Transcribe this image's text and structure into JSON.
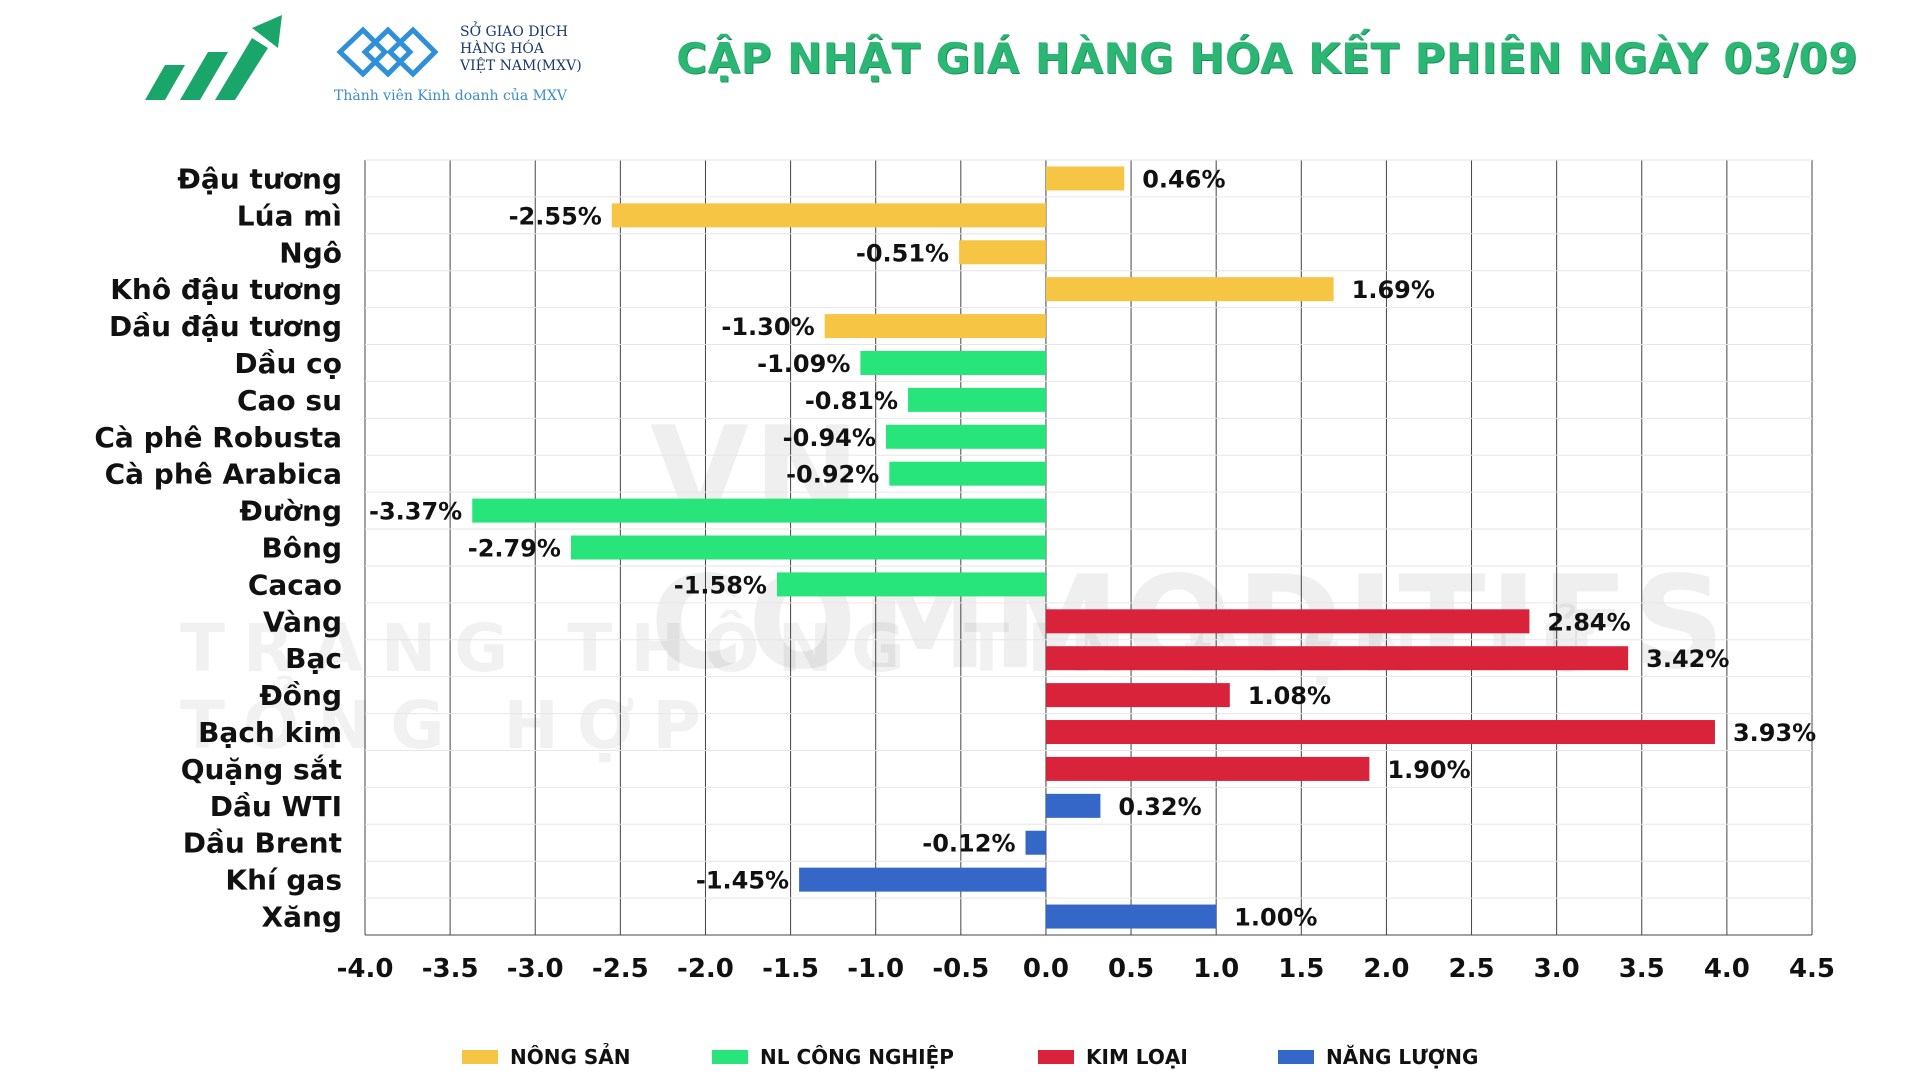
{
  "header": {
    "title": "CẬP NHẬT GIÁ HÀNG HÓA KẾT PHIÊN NGÀY 03/09",
    "mxv_line1": "SỞ GIAO DỊCH",
    "mxv_line2": "HÀNG HÓA",
    "mxv_line3": "VIỆT NAM(MXV)",
    "mxv_sub": "Thành viên Kinh doanh của MXV"
  },
  "watermark": {
    "line1": "VN COMMODITIES",
    "line2": "TRANG THÔNG TIN ĐIỆN TỬ TỔNG HỢP"
  },
  "colors": {
    "nong_san": "#f7c544",
    "nl_cong_nghiep": "#27e57a",
    "kim_loai": "#d9233a",
    "nang_luong": "#3467c8",
    "title": "#2bb673"
  },
  "chart_data": {
    "type": "bar",
    "orientation": "horizontal",
    "xlim": [
      -4.0,
      4.5
    ],
    "xticks": [
      "-4.0",
      "-3.5",
      "-3.0",
      "-2.5",
      "-2.0",
      "-1.5",
      "-1.0",
      "-0.5",
      "0.0",
      "0.5",
      "1.0",
      "1.5",
      "2.0",
      "2.5",
      "3.0",
      "3.5",
      "4.0",
      "4.5"
    ],
    "grid": true,
    "legend_placement": "bottom",
    "groups": [
      {
        "name": "NÔNG SẢN",
        "color": "#f7c544"
      },
      {
        "name": "NL CÔNG NGHIỆP",
        "color": "#27e57a"
      },
      {
        "name": "KIM LOẠI",
        "color": "#d9233a"
      },
      {
        "name": "NĂNG LƯỢNG",
        "color": "#3467c8"
      }
    ],
    "items": [
      {
        "name": "Đậu tương",
        "value": 0.46,
        "label": "0.46%",
        "group": 0
      },
      {
        "name": "Lúa mì",
        "value": -2.55,
        "label": "-2.55%",
        "group": 0
      },
      {
        "name": "Ngô",
        "value": -0.51,
        "label": "-0.51%",
        "group": 0
      },
      {
        "name": "Khô đậu tương",
        "value": 1.69,
        "label": "1.69%",
        "group": 0
      },
      {
        "name": "Dầu đậu tương",
        "value": -1.3,
        "label": "-1.30%",
        "group": 0
      },
      {
        "name": "Dầu cọ",
        "value": -1.09,
        "label": "-1.09%",
        "group": 1
      },
      {
        "name": "Cao su",
        "value": -0.81,
        "label": "-0.81%",
        "group": 1
      },
      {
        "name": "Cà phê Robusta",
        "value": -0.94,
        "label": "-0.94%",
        "group": 1
      },
      {
        "name": "Cà phê Arabica",
        "value": -0.92,
        "label": "-0.92%",
        "group": 1
      },
      {
        "name": "Đường",
        "value": -3.37,
        "label": "-3.37%",
        "group": 1
      },
      {
        "name": "Bông",
        "value": -2.79,
        "label": "-2.79%",
        "group": 1
      },
      {
        "name": "Cacao",
        "value": -1.58,
        "label": "-1.58%",
        "group": 1
      },
      {
        "name": "Vàng",
        "value": 2.84,
        "label": "2.84%",
        "group": 2
      },
      {
        "name": "Bạc",
        "value": 3.42,
        "label": "3.42%",
        "group": 2
      },
      {
        "name": "Đồng",
        "value": 1.08,
        "label": "1.08%",
        "group": 2
      },
      {
        "name": "Bạch kim",
        "value": 3.93,
        "label": "3.93%",
        "group": 2
      },
      {
        "name": "Quặng sắt",
        "value": 1.9,
        "label": "1.90%",
        "group": 2
      },
      {
        "name": "Dầu WTI",
        "value": 0.32,
        "label": "0.32%",
        "group": 3
      },
      {
        "name": "Dầu Brent",
        "value": -0.12,
        "label": "-0.12%",
        "group": 3
      },
      {
        "name": "Khí gas",
        "value": -1.45,
        "label": "-1.45%",
        "group": 3
      },
      {
        "name": "Xăng",
        "value": 1.0,
        "label": "1.00%",
        "group": 3
      }
    ]
  }
}
